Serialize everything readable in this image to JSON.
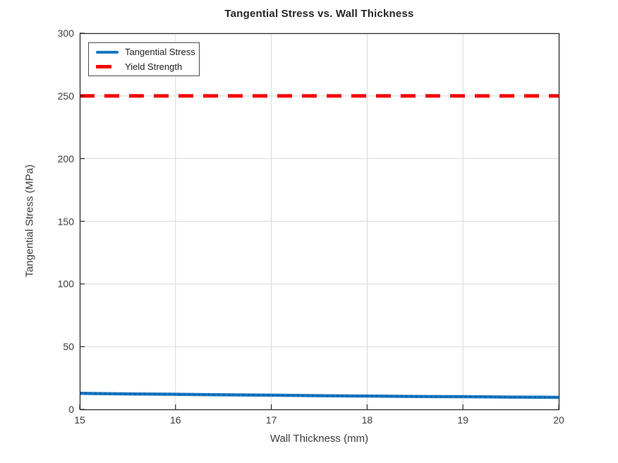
{
  "title": "Tangential Stress vs. Wall Thickness",
  "colors": {
    "tangential": "#1878c2",
    "tangential_marker": "#0b5fa6",
    "yield": "#f40000",
    "grid": "#d9d9d9",
    "axis": "#2b2b2b",
    "text": "#3d3d3d",
    "title_text": "#262626",
    "legend_border": "#4d4d4d"
  },
  "legend": {
    "position": "top-left",
    "items": [
      {
        "label": "Tangential Stress",
        "color": "#1878c2",
        "style": "solid"
      },
      {
        "label": "Yield Strength",
        "color": "#f40000",
        "style": "dashed"
      }
    ]
  },
  "chart_data": {
    "type": "line",
    "title": "Tangential Stress vs. Wall Thickness",
    "xlabel": "Wall Thickness (mm)",
    "ylabel": "Tangential Stress (MPa)",
    "xlim": [
      15,
      20
    ],
    "ylim": [
      0,
      300
    ],
    "x_ticks": [
      15,
      16,
      17,
      18,
      19,
      20
    ],
    "y_ticks": [
      0,
      50,
      100,
      150,
      200,
      250,
      300
    ],
    "grid": true,
    "legend_position": "top-left",
    "x": [
      15,
      15.5,
      16,
      16.5,
      17,
      17.5,
      18,
      18.5,
      19,
      19.5,
      20
    ],
    "series": [
      {
        "name": "Tangential Stress",
        "color": "#1878c2",
        "marker_color": "#0b5fa6",
        "line_style": "solid",
        "line_width": 4.5,
        "marker": "dot-overlay",
        "values": [
          12.8,
          12.3,
          12.0,
          11.6,
          11.3,
          10.9,
          10.6,
          10.3,
          10.1,
          9.8,
          9.6
        ]
      },
      {
        "name": "Yield Strength",
        "color": "#f40000",
        "marker_color": null,
        "line_style": "dashed",
        "line_width": 5,
        "marker": "none",
        "values": [
          250,
          250,
          250,
          250,
          250,
          250,
          250,
          250,
          250,
          250,
          250
        ]
      }
    ]
  }
}
